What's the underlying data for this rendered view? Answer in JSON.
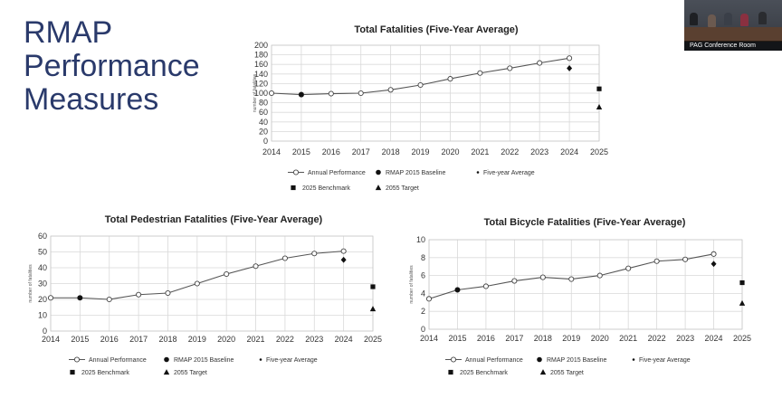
{
  "slide": {
    "title_lines": [
      "RMAP",
      "Performance",
      "Measures"
    ]
  },
  "video": {
    "caption": "PAG Conference Room"
  },
  "legend_labels": {
    "annual": "Annual Performance",
    "baseline": "RMAP 2015 Baseline",
    "five_year": "Five-year Average",
    "benchmark": "2025 Benchmark",
    "target": "2055 Target"
  },
  "chart_data": [
    {
      "type": "line",
      "title": "Total Fatalities (Five-Year Average)",
      "ylabel": "number of fatalities",
      "xlabel": "",
      "categories": [
        "2014",
        "2015",
        "2016",
        "2017",
        "2018",
        "2019",
        "2020",
        "2021",
        "2022",
        "2023",
        "2024",
        "2025"
      ],
      "ylim": [
        0,
        200
      ],
      "yticks": [
        0,
        20,
        40,
        60,
        80,
        100,
        120,
        140,
        160,
        180,
        200
      ],
      "grid": true,
      "legend_position": "bottom",
      "series": [
        {
          "name": "Annual Performance",
          "x": [
            "2014",
            "2015",
            "2016",
            "2017",
            "2018",
            "2019",
            "2020",
            "2021",
            "2022",
            "2023",
            "2024"
          ],
          "values": [
            100,
            97,
            99,
            100,
            107,
            117,
            130,
            142,
            152,
            163,
            173
          ]
        },
        {
          "name": "RMAP 2015 Baseline",
          "x": [
            "2015"
          ],
          "values": [
            97
          ]
        },
        {
          "name": "Five-year Average",
          "x": [
            "2024"
          ],
          "values": [
            152
          ]
        },
        {
          "name": "2025 Benchmark",
          "x": [
            "2025"
          ],
          "values": [
            109
          ]
        },
        {
          "name": "2055 Target",
          "x": [
            "2025"
          ],
          "values": [
            71
          ]
        }
      ]
    },
    {
      "type": "line",
      "title": "Total Pedestrian Fatalities (Five-Year Average)",
      "ylabel": "number of fatalities",
      "xlabel": "",
      "categories": [
        "2014",
        "2015",
        "2016",
        "2017",
        "2018",
        "2019",
        "2020",
        "2021",
        "2022",
        "2023",
        "2024",
        "2025"
      ],
      "ylim": [
        0,
        60
      ],
      "yticks": [
        0,
        10,
        20,
        30,
        40,
        50,
        60
      ],
      "grid": true,
      "legend_position": "bottom",
      "series": [
        {
          "name": "Annual Performance",
          "x": [
            "2014",
            "2015",
            "2016",
            "2017",
            "2018",
            "2019",
            "2020",
            "2021",
            "2022",
            "2023",
            "2024"
          ],
          "values": [
            21,
            21,
            20,
            23,
            24,
            30,
            36,
            41,
            46,
            49,
            50.5
          ]
        },
        {
          "name": "RMAP 2015 Baseline",
          "x": [
            "2015"
          ],
          "values": [
            21
          ]
        },
        {
          "name": "Five-year Average",
          "x": [
            "2024"
          ],
          "values": [
            45
          ]
        },
        {
          "name": "2025 Benchmark",
          "x": [
            "2025"
          ],
          "values": [
            28
          ]
        },
        {
          "name": "2055 Target",
          "x": [
            "2025"
          ],
          "values": [
            14
          ]
        }
      ]
    },
    {
      "type": "line",
      "title": "Total Bicycle Fatalities (Five-Year Average)",
      "ylabel": "number of fatalities",
      "xlabel": "",
      "categories": [
        "2014",
        "2015",
        "2016",
        "2017",
        "2018",
        "2019",
        "2020",
        "2021",
        "2022",
        "2023",
        "2024",
        "2025"
      ],
      "ylim": [
        0,
        10
      ],
      "yticks": [
        0,
        2,
        4,
        6,
        8,
        10
      ],
      "grid": true,
      "legend_position": "bottom",
      "series": [
        {
          "name": "Annual Performance",
          "x": [
            "2014",
            "2015",
            "2016",
            "2017",
            "2018",
            "2019",
            "2020",
            "2021",
            "2022",
            "2023",
            "2024"
          ],
          "values": [
            3.4,
            4.4,
            4.8,
            5.4,
            5.8,
            5.6,
            6.0,
            6.8,
            7.6,
            7.8,
            8.4
          ]
        },
        {
          "name": "RMAP 2015 Baseline",
          "x": [
            "2015"
          ],
          "values": [
            4.4
          ]
        },
        {
          "name": "Five-year Average",
          "x": [
            "2024"
          ],
          "values": [
            7.3
          ]
        },
        {
          "name": "2025 Benchmark",
          "x": [
            "2025"
          ],
          "values": [
            5.2
          ]
        },
        {
          "name": "2055 Target",
          "x": [
            "2025"
          ],
          "values": [
            2.9
          ]
        }
      ]
    }
  ]
}
